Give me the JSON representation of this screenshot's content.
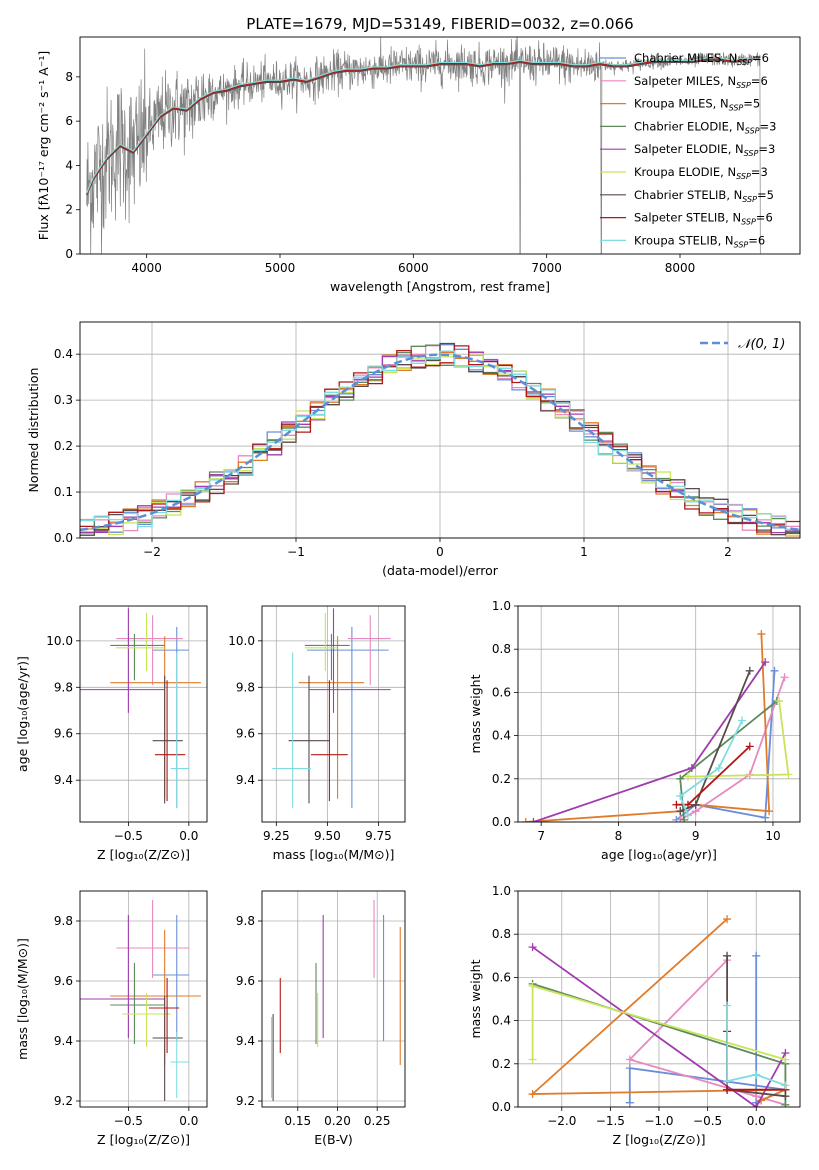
{
  "suptitle": "PLATE=1679, MJD=53149, FIBERID=0032, z=0.066",
  "models": [
    {
      "name": "Chabrier MILES",
      "nssp": "6",
      "color": "#6a8fd8"
    },
    {
      "name": "Salpeter MILES",
      "nssp": "6",
      "color": "#e889c0"
    },
    {
      "name": "Kroupa MILES",
      "nssp": "5",
      "color": "#e07b2a"
    },
    {
      "name": "Chabrier ELODIE",
      "nssp": "3",
      "color": "#5c8a5a"
    },
    {
      "name": "Salpeter ELODIE",
      "nssp": "3",
      "color": "#a13bb0"
    },
    {
      "name": "Kroupa ELODIE",
      "nssp": "3",
      "color": "#c9e35a"
    },
    {
      "name": "Chabrier STELIB",
      "nssp": "5",
      "color": "#5a4a4a"
    },
    {
      "name": "Salpeter STELIB",
      "nssp": "6",
      "color": "#b01818"
    },
    {
      "name": "Kroupa STELIB",
      "nssp": "6",
      "color": "#7fdde0"
    }
  ],
  "chart_data": [
    {
      "id": "spectrum",
      "type": "line",
      "xlabel": "wavelength [Angstrom, rest frame]",
      "ylabel": "Flux [fλ10⁻¹⁷ erg cm⁻² s⁻¹ A⁻¹]",
      "xlim": [
        3500,
        8900
      ],
      "ylim": [
        0,
        9.8
      ],
      "xticks": [
        "4000",
        "5000",
        "6000",
        "7000",
        "8000"
      ],
      "yticks": [
        "0",
        "2",
        "4",
        "6",
        "8"
      ],
      "data_color": "#808080",
      "x": [
        3550,
        3600,
        3700,
        3800,
        3900,
        4000,
        4100,
        4200,
        4300,
        4400,
        4500,
        4600,
        4700,
        4800,
        4900,
        5000,
        5100,
        5200,
        5300,
        5400,
        5500,
        5600,
        5700,
        5800,
        5900,
        6000,
        6100,
        6200,
        6300,
        6400,
        6500,
        6600,
        6700,
        6800,
        6900,
        7000,
        7100,
        7200,
        7300,
        7400,
        7500,
        7600,
        7700,
        7800,
        7900,
        8000,
        8100,
        8200,
        8300,
        8400,
        8500
      ],
      "model_flux": [
        2.7,
        3.4,
        4.3,
        4.9,
        4.6,
        5.4,
        6.2,
        6.6,
        6.5,
        7.0,
        7.3,
        7.4,
        7.6,
        7.7,
        7.8,
        7.8,
        7.9,
        7.8,
        8.0,
        8.2,
        8.3,
        8.3,
        8.4,
        8.4,
        8.5,
        8.5,
        8.5,
        8.6,
        8.6,
        8.6,
        8.5,
        8.6,
        8.6,
        8.7,
        8.6,
        8.6,
        8.6,
        8.5,
        8.5,
        8.6,
        8.5,
        8.5,
        8.6,
        8.7,
        8.7,
        8.7,
        8.7,
        8.8,
        8.8,
        8.7,
        8.8
      ]
    },
    {
      "id": "residuals",
      "type": "histogram",
      "xlabel": "(data-model)/error",
      "ylabel": "Normed distribution",
      "xlim": [
        -2.5,
        2.5
      ],
      "ylim": [
        0,
        0.47
      ],
      "xticks": [
        "−2",
        "−1",
        "0",
        "1",
        "2"
      ],
      "yticks": [
        "0.0",
        "0.1",
        "0.2",
        "0.3",
        "0.4"
      ],
      "reference_label": "𝒩(0, 1)",
      "reference_color": "#5b8fd6",
      "bin_width": 0.1
    },
    {
      "id": "age-vs-Z",
      "type": "errorbar",
      "xlabel": "Z [log₁₀(Z/Z⊙)]",
      "ylabel": "age  [log₁₀(age/yr)]",
      "xlim": [
        -0.9,
        0.15
      ],
      "ylim": [
        9.22,
        10.15
      ],
      "xticks": [
        "−0.5",
        "0.0"
      ],
      "yticks": [
        "9.4",
        "9.6",
        "9.8",
        "10.0"
      ],
      "points": [
        {
          "x": -0.1,
          "xerr": [
            0.2,
            0.1
          ],
          "y": 9.96,
          "yerr": [
            0.68,
            0.1
          ]
        },
        {
          "x": -0.3,
          "xerr": [
            0.3,
            0.25
          ],
          "y": 10.01,
          "yerr": [
            0.2,
            0.1
          ]
        },
        {
          "x": -0.2,
          "xerr": [
            0.45,
            0.3
          ],
          "y": 9.82,
          "yerr": [
            0.5,
            0.2
          ]
        },
        {
          "x": -0.45,
          "xerr": [
            0.2,
            0.25
          ],
          "y": 9.98,
          "yerr": [
            0.15,
            0.05
          ]
        },
        {
          "x": -0.5,
          "xerr": [
            0.4,
            0.3
          ],
          "y": 9.79,
          "yerr": [
            0.1,
            0.35
          ]
        },
        {
          "x": -0.35,
          "xerr": [
            0.25,
            0.15
          ],
          "y": 9.97,
          "yerr": [
            0.1,
            0.15
          ]
        },
        {
          "x": -0.2,
          "xerr": [
            0.1,
            0.15
          ],
          "y": 9.57,
          "yerr": [
            0.27,
            0.28
          ]
        },
        {
          "x": -0.18,
          "xerr": [
            0.1,
            0.15
          ],
          "y": 9.51,
          "yerr": [
            0.2,
            0.32
          ]
        },
        {
          "x": -0.1,
          "xerr": [
            0.05,
            0.1
          ],
          "y": 9.45,
          "yerr": [
            0.17,
            0.5
          ]
        }
      ]
    },
    {
      "id": "age-vs-mass",
      "type": "errorbar",
      "xlabel": "mass [log₁₀(M/M⊙)]",
      "ylabel": "",
      "xlim": [
        9.18,
        9.88
      ],
      "ylim": [
        9.22,
        10.15
      ],
      "xticks": [
        "9.25",
        "9.50",
        "9.75"
      ],
      "yticks": [
        "9.4",
        "9.6",
        "9.8",
        "10.0"
      ],
      "points": [
        {
          "x": 9.62,
          "xerr": [
            0.22,
            0.18
          ],
          "y": 9.96,
          "yerr": [
            0.68,
            0.1
          ]
        },
        {
          "x": 9.71,
          "xerr": [
            0.11,
            0.1
          ],
          "y": 10.01,
          "yerr": [
            0.2,
            0.1
          ]
        },
        {
          "x": 9.55,
          "xerr": [
            0.19,
            0.13
          ],
          "y": 9.82,
          "yerr": [
            0.5,
            0.2
          ]
        },
        {
          "x": 9.52,
          "xerr": [
            0.13,
            0.09
          ],
          "y": 9.98,
          "yerr": [
            0.15,
            0.05
          ]
        },
        {
          "x": 9.53,
          "xerr": [
            0.12,
            0.28
          ],
          "y": 9.79,
          "yerr": [
            0.1,
            0.35
          ]
        },
        {
          "x": 9.49,
          "xerr": [
            0.1,
            0.06
          ],
          "y": 9.97,
          "yerr": [
            0.1,
            0.15
          ]
        },
        {
          "x": 9.41,
          "xerr": [
            0.1,
            0.1
          ],
          "y": 9.57,
          "yerr": [
            0.27,
            0.28
          ]
        },
        {
          "x": 9.51,
          "xerr": [
            0.09,
            0.09
          ],
          "y": 9.51,
          "yerr": [
            0.2,
            0.32
          ]
        },
        {
          "x": 9.33,
          "xerr": [
            0.1,
            0.09
          ],
          "y": 9.45,
          "yerr": [
            0.17,
            0.5
          ]
        }
      ]
    },
    {
      "id": "weight-vs-age",
      "type": "line",
      "xlabel": "age  [log₁₀(age/yr)]",
      "ylabel": "mass weight",
      "xlim": [
        6.7,
        10.35
      ],
      "ylim": [
        0,
        1.0
      ],
      "xticks": [
        "7",
        "8",
        "9",
        "10"
      ],
      "yticks": [
        "0.0",
        "0.2",
        "0.4",
        "0.6",
        "0.8",
        "1.0"
      ],
      "series": [
        {
          "x": [
            10.02,
            9.9,
            9.0,
            8.75
          ],
          "y": [
            0.7,
            0.02,
            0.08,
            0.01
          ]
        },
        {
          "x": [
            10.15,
            9.7,
            9.0,
            8.8
          ],
          "y": [
            0.67,
            0.22,
            0.05,
            0.01
          ]
        },
        {
          "x": [
            9.85,
            9.95,
            9.0,
            8.8,
            6.8
          ],
          "y": [
            0.87,
            0.05,
            0.08,
            0.05,
            0.0
          ]
        },
        {
          "x": [
            10.05,
            8.8,
            8.85
          ],
          "y": [
            0.56,
            0.2,
            0.01
          ]
        },
        {
          "x": [
            9.9,
            8.95,
            6.9
          ],
          "y": [
            0.74,
            0.25,
            0.0
          ]
        },
        {
          "x": [
            10.08,
            10.2,
            8.9
          ],
          "y": [
            0.56,
            0.22,
            0.21
          ]
        },
        {
          "x": [
            9.7,
            9.0,
            8.8
          ],
          "y": [
            0.7,
            0.08,
            0.05
          ]
        },
        {
          "x": [
            9.7,
            8.9,
            8.75
          ],
          "y": [
            0.35,
            0.08,
            0.08
          ]
        },
        {
          "x": [
            9.6,
            9.3,
            8.8,
            8.9
          ],
          "y": [
            0.47,
            0.25,
            0.12,
            0.03
          ]
        }
      ]
    },
    {
      "id": "mass-vs-Z",
      "type": "errorbar",
      "xlabel": "Z [log₁₀(Z/Z⊙)]",
      "ylabel": "mass [log₁₀(M/M⊙)]",
      "xlim": [
        -0.9,
        0.15
      ],
      "ylim": [
        9.18,
        9.9
      ],
      "xticks": [
        "−0.5",
        "0.0"
      ],
      "yticks": [
        "9.2",
        "9.4",
        "9.6",
        "9.8"
      ],
      "points": [
        {
          "x": -0.1,
          "xerr": [
            0.2,
            0.1
          ],
          "y": 9.62,
          "yerr": [
            0.22,
            0.2
          ]
        },
        {
          "x": -0.3,
          "xerr": [
            0.3,
            0.3
          ],
          "y": 9.71,
          "yerr": [
            0.1,
            0.16
          ]
        },
        {
          "x": -0.2,
          "xerr": [
            0.45,
            0.3
          ],
          "y": 9.55,
          "yerr": [
            0.23,
            0.22
          ]
        },
        {
          "x": -0.45,
          "xerr": [
            0.2,
            0.25
          ],
          "y": 9.52,
          "yerr": [
            0.13,
            0.14
          ]
        },
        {
          "x": -0.5,
          "xerr": [
            0.4,
            0.3
          ],
          "y": 9.54,
          "yerr": [
            0.13,
            0.28
          ]
        },
        {
          "x": -0.35,
          "xerr": [
            0.2,
            0.2
          ],
          "y": 9.49,
          "yerr": [
            0.11,
            0.07
          ]
        },
        {
          "x": -0.2,
          "xerr": [
            0.1,
            0.15
          ],
          "y": 9.41,
          "yerr": [
            0.21,
            0.14
          ]
        },
        {
          "x": -0.18,
          "xerr": [
            0.15,
            0.1
          ],
          "y": 9.51,
          "yerr": [
            0.15,
            0.1
          ]
        },
        {
          "x": -0.1,
          "xerr": [
            0.05,
            0.1
          ],
          "y": 9.33,
          "yerr": [
            0.12,
            0.1
          ]
        }
      ]
    },
    {
      "id": "mass-vs-ebv",
      "type": "errorbar",
      "xlabel": "E(B-V)",
      "ylabel": "",
      "xlim": [
        0.105,
        0.285
      ],
      "ylim": [
        9.18,
        9.9
      ],
      "xticks": [
        "0.15",
        "0.20",
        "0.25"
      ],
      "yticks": [
        "9.2",
        "9.4",
        "9.6",
        "9.8"
      ],
      "points": [
        {
          "x": 0.258,
          "y": 9.62,
          "yerr": [
            0.22,
            0.2
          ]
        },
        {
          "x": 0.246,
          "y": 9.71,
          "yerr": [
            0.1,
            0.16
          ]
        },
        {
          "x": 0.279,
          "y": 9.55,
          "yerr": [
            0.23,
            0.23
          ]
        },
        {
          "x": 0.173,
          "y": 9.52,
          "yerr": [
            0.13,
            0.14
          ]
        },
        {
          "x": 0.182,
          "y": 9.54,
          "yerr": [
            0.13,
            0.28
          ]
        },
        {
          "x": 0.175,
          "y": 9.49,
          "yerr": [
            0.11,
            0.07
          ]
        },
        {
          "x": 0.119,
          "y": 9.41,
          "yerr": [
            0.21,
            0.08
          ]
        },
        {
          "x": 0.128,
          "y": 9.51,
          "yerr": [
            0.15,
            0.1
          ]
        },
        {
          "x": 0.117,
          "y": 9.33,
          "yerr": [
            0.12,
            0.15
          ]
        }
      ]
    },
    {
      "id": "weight-vs-Z",
      "type": "line",
      "xlabel": "Z [log₁₀(Z/Z⊙)]",
      "ylabel": "mass weight",
      "xlim": [
        -2.45,
        0.45
      ],
      "ylim": [
        0,
        1.0
      ],
      "xticks": [
        "−2.0",
        "−1.5",
        "−1.0",
        "−0.5",
        "0.0"
      ],
      "yticks": [
        "0.0",
        "0.2",
        "0.4",
        "0.6",
        "0.8",
        "1.0"
      ],
      "series": [
        {
          "x": [
            0.0,
            0.0,
            0.3,
            -1.3,
            -1.3
          ],
          "y": [
            0.7,
            0.02,
            0.08,
            0.18,
            0.02
          ]
        },
        {
          "x": [
            -0.3,
            -1.3,
            0.0,
            0.3
          ],
          "y": [
            0.68,
            0.22,
            0.05,
            0.01
          ]
        },
        {
          "x": [
            -0.3,
            -2.3,
            0.3,
            0.05
          ],
          "y": [
            0.87,
            0.06,
            0.08,
            0.03
          ]
        },
        {
          "x": [
            -2.3,
            0.3,
            0.3
          ],
          "y": [
            0.57,
            0.2,
            0.01
          ]
        },
        {
          "x": [
            -2.3,
            0.0,
            0.3
          ],
          "y": [
            0.74,
            0.0,
            0.25
          ]
        },
        {
          "x": [
            -2.3,
            -2.3,
            0.3
          ],
          "y": [
            0.22,
            0.56,
            0.22
          ]
        },
        {
          "x": [
            -0.3,
            -0.3,
            0.3
          ],
          "y": [
            0.7,
            0.08,
            0.05
          ]
        },
        {
          "x": [
            -0.3,
            -0.3,
            0.3
          ],
          "y": [
            0.35,
            0.08,
            0.08
          ]
        },
        {
          "x": [
            -0.3,
            -0.3,
            0.0,
            0.3
          ],
          "y": [
            0.47,
            0.12,
            0.15,
            0.1
          ]
        }
      ]
    }
  ]
}
